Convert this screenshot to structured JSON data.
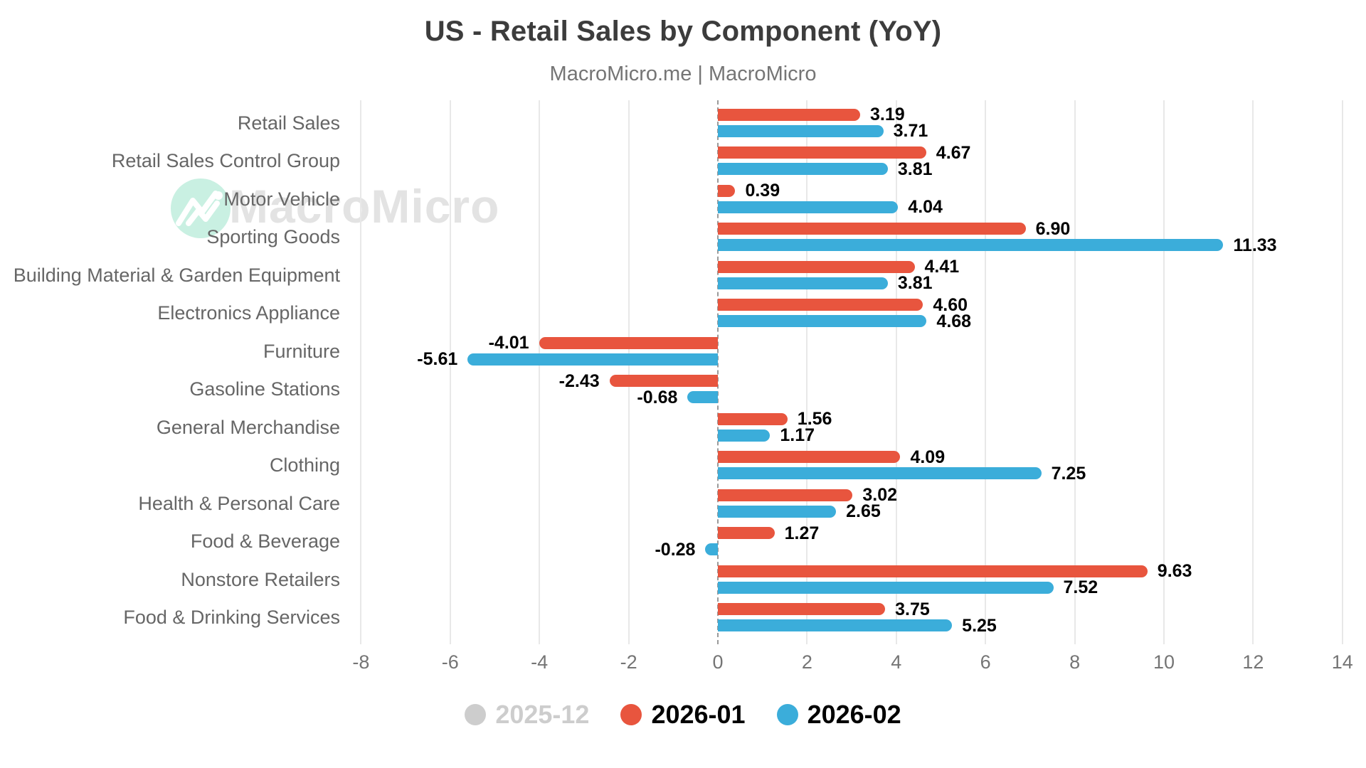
{
  "title": "US - Retail Sales by Component (YoY)",
  "subtitle": "MacroMicro.me | MacroMicro",
  "watermark": {
    "text": "MacroMicro",
    "logo": "macromicro-mountain-logo"
  },
  "colors": {
    "series_2026_01": "#e8553e",
    "series_2026_02": "#3badda",
    "disabled": "#cdcdcd",
    "grid": "#e8e8e8",
    "zero_line": "#9a9a9a",
    "category_label": "#666666",
    "tick_label": "#757575",
    "value_label": "#000000",
    "watermark_circle": "#c9f0e2",
    "watermark_text": "#e3e3e3"
  },
  "legend": [
    {
      "label": "2025-12",
      "color": "#cdcdcd",
      "active": false
    },
    {
      "label": "2026-01",
      "color": "#e8553e",
      "active": true
    },
    {
      "label": "2026-02",
      "color": "#3badda",
      "active": true
    }
  ],
  "chart_data": {
    "type": "bar",
    "orientation": "horizontal",
    "title": "US - Retail Sales by Component (YoY)",
    "subtitle": "MacroMicro.me | MacroMicro",
    "categories": [
      "Retail Sales",
      "Retail Sales Control Group",
      "Motor Vehicle",
      "Sporting Goods",
      "Building Material & Garden Equipment",
      "Electronics Appliance",
      "Furniture",
      "Gasoline Stations",
      "General Merchandise",
      "Clothing",
      "Health & Personal Care",
      "Food & Beverage",
      "Nonstore Retailers",
      "Food & Drinking Services"
    ],
    "series": [
      {
        "name": "2025-12",
        "hidden": true,
        "values": null
      },
      {
        "name": "2026-01",
        "hidden": false,
        "values": [
          3.19,
          4.67,
          0.39,
          6.9,
          4.41,
          4.6,
          -4.01,
          -2.43,
          1.56,
          4.09,
          3.02,
          1.27,
          9.63,
          3.75
        ]
      },
      {
        "name": "2026-02",
        "hidden": false,
        "values": [
          3.71,
          3.81,
          4.04,
          11.33,
          3.81,
          4.68,
          -5.61,
          -0.68,
          1.17,
          7.25,
          2.65,
          -0.28,
          7.52,
          5.25
        ]
      }
    ],
    "xticks": [
      -8,
      -6,
      -4,
      -2,
      0,
      2,
      4,
      6,
      8,
      10,
      12,
      14
    ],
    "xlim": [
      -8,
      14
    ],
    "value_decimals": 2,
    "grid": true,
    "legend_position": "bottom"
  }
}
